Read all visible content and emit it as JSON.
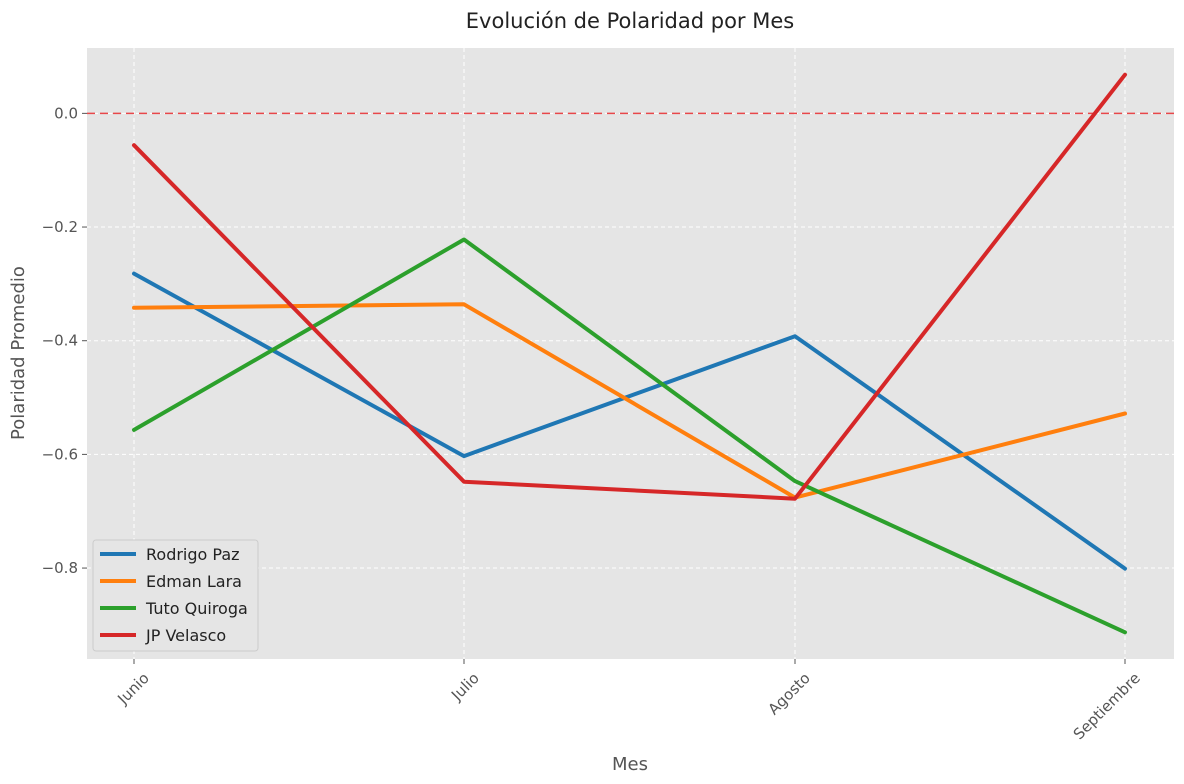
{
  "chart_data": {
    "type": "line",
    "title": "Evolución de Polaridad por Mes",
    "xlabel": "Mes",
    "ylabel": "Polaridad Promedio",
    "categories": [
      "Junio",
      "Julio",
      "Agosto",
      "Septiembre"
    ],
    "ylim": [
      -0.96,
      0.115
    ],
    "yticks": [
      0.0,
      -0.2,
      -0.4,
      -0.6,
      -0.8
    ],
    "ytick_labels": [
      "0.0",
      "−0.2",
      "−0.4",
      "−0.6",
      "−0.8"
    ],
    "reference_line": {
      "y": 0.0,
      "color": "#e8474a",
      "style": "dashed"
    },
    "grid": true,
    "legend_position": "lower-left",
    "series": [
      {
        "name": "Rodrigo Paz",
        "color": "#1f77b4",
        "values": [
          -0.282,
          -0.603,
          -0.392,
          -0.801
        ]
      },
      {
        "name": "Edman Lara",
        "color": "#ff7f0e",
        "values": [
          -0.342,
          -0.336,
          -0.676,
          -0.528
        ]
      },
      {
        "name": "Tuto Quiroga",
        "color": "#2ca02c",
        "values": [
          -0.557,
          -0.222,
          -0.647,
          -0.913
        ]
      },
      {
        "name": "JP Velasco",
        "color": "#d62728",
        "values": [
          -0.056,
          -0.648,
          -0.678,
          0.068
        ]
      }
    ]
  }
}
